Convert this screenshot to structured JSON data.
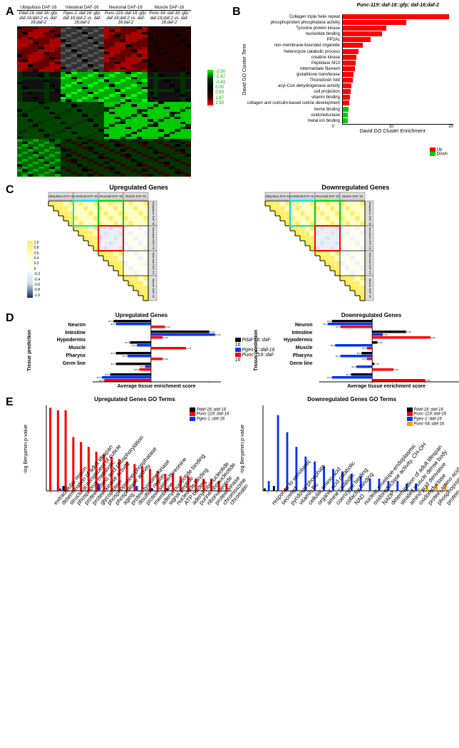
{
  "panelA": {
    "col_groups": [
      "Ubiquitous DAF-16",
      "Intestinal DAF-16",
      "Neuronal DAF-16",
      "Muscle DAF-16"
    ],
    "col_sub": [
      "Pdaf-16::daf-16::gfp; daf-16;daf-2 vs. daf-16;daf-2",
      "Pges-1::daf-16::gfp; daf-16;daf-2 vs. daf-16;daf-2",
      "Punc-119::daf-16::gfp; daf-16;daf-2 vs. daf-16;daf-2",
      "Punc-54::daf-16::gfp; daf-16;daf-2 vs. daf-16;daf-2"
    ],
    "legend_vals": [
      "-2.50",
      "-1.67",
      "-0.83",
      "0.00",
      "0.83",
      "1.67",
      "2.50"
    ],
    "colors": [
      "#00ff00",
      "#008800",
      "#003300",
      "#000000",
      "#330000",
      "#880000",
      "#ff0000",
      "#111111",
      "#222222",
      "#556655"
    ]
  },
  "panelB": {
    "title": "Punc-119::daf-16::gfp; daf-16;daf-2",
    "y_label": "David GO Cluster Term",
    "x_label": "David GO Cluster Enrichment",
    "x_ticks": [
      0,
      10,
      20
    ],
    "x_max": 28,
    "terms": [
      {
        "label": "Collagen triple helix repeat",
        "val": 27,
        "color": "#ff0000"
      },
      {
        "label": "phosphoprotein phosphatase activity",
        "val": 16,
        "color": "#ff0000"
      },
      {
        "label": "Tyrosine protein kinase",
        "val": 11,
        "color": "#ff0000"
      },
      {
        "label": "nucleotide binding",
        "val": 10,
        "color": "#ff0000"
      },
      {
        "label": "PP2Ac",
        "val": 7,
        "color": "#ff0000"
      },
      {
        "label": "non-membrane-bounded organelle",
        "val": 5,
        "color": "#ff0000"
      },
      {
        "label": "heterocycle catabolic process",
        "val": 4,
        "color": "#ff0000"
      },
      {
        "label": "creatine kinase",
        "val": 3.5,
        "color": "#ff0000"
      },
      {
        "label": "Peptidase M13",
        "val": 3.2,
        "color": "#ff0000"
      },
      {
        "label": "Intermediate filament",
        "val": 3,
        "color": "#ff0000"
      },
      {
        "label": "glutathione transferase",
        "val": 2.8,
        "color": "#ff0000"
      },
      {
        "label": "Thioredoxin fold",
        "val": 2.5,
        "color": "#ff0000"
      },
      {
        "label": "acyl-CoA dehydrogenase activity",
        "val": 2.2,
        "color": "#ff0000"
      },
      {
        "label": "cell projection",
        "val": 2,
        "color": "#ff0000"
      },
      {
        "label": "vitamin binding",
        "val": 1.8,
        "color": "#ff0000"
      },
      {
        "label": "collagen and cuticulin-based cuticle development",
        "val": 1.6,
        "color": "#ff0000"
      },
      {
        "label": "heme binding",
        "val": 1.5,
        "color": "#00cc00"
      },
      {
        "label": "oxidoreductase",
        "val": 1.3,
        "color": "#00cc00"
      },
      {
        "label": "metal ion binding",
        "val": 1.2,
        "color": "#00cc00"
      }
    ],
    "legend": [
      {
        "label": "Up",
        "color": "#ff0000"
      },
      {
        "label": "Down",
        "color": "#00cc00"
      }
    ]
  },
  "panelC": {
    "titles": [
      "Upregulated Genes",
      "Downregulated Genes"
    ],
    "groups": [
      "Ubiquitous DAF-16",
      "Intestinal DAF-16",
      "Neuronal DAF-16",
      "Muscle DAF-16"
    ],
    "legend_vals": [
      "1.0",
      "0.8",
      "0.6",
      "0.4",
      "0.2",
      "0",
      "-0.2",
      "-0.4",
      "-0.6",
      "-0.8",
      "-1.0"
    ],
    "box_colors": {
      "cyan": "#00dddd",
      "green": "#00cc00",
      "red": "#ff0000"
    },
    "cell_colors": {
      "high": "#ffee44",
      "mid": "#ffffdd",
      "low": "#ffffff",
      "neg": "#bbccdd"
    }
  },
  "panelD": {
    "titles": [
      "Upregulated Genes",
      "Downregulated Genes"
    ],
    "y_label": "Tissue prediction",
    "x_label": "Average tissue enrichment score",
    "tissues": [
      "Neuron",
      "Intestine",
      "Hypodermis",
      "Muscle",
      "Pharynx",
      "Germ line"
    ],
    "x_range": [
      -0.5,
      0.5
    ],
    "x_ticks": [
      -0.5,
      0,
      0.5
    ],
    "series": [
      {
        "label": "Pdaf-16::daf-16",
        "color": "#000000"
      },
      {
        "label": "Pges-1::daf-16",
        "color": "#0033ff"
      },
      {
        "label": "Punc-119::daf-16",
        "color": "#ff0000"
      }
    ],
    "up_data": {
      "Neuron": [
        -0.32,
        -0.3,
        0.12
      ],
      "Intestine": [
        0.5,
        0.55,
        0.1
      ],
      "Hypodermis": [
        -0.18,
        -0.12,
        0.3
      ],
      "Muscle": [
        -0.3,
        -0.2,
        0.1
      ],
      "Pharynx": [
        -0.3,
        -0.05,
        -0.1
      ],
      "Germ line": [
        -0.35,
        -0.42,
        -0.4
      ]
    },
    "down_data": {
      "Neuron": [
        -0.38,
        -0.42,
        -0.3
      ],
      "Intestine": [
        0.32,
        0.1,
        0.55
      ],
      "Hypodermis": [
        0.05,
        -0.35,
        -0.05
      ],
      "Muscle": [
        -0.1,
        -0.3,
        -0.05
      ],
      "Pharynx": [
        0.02,
        -0.15,
        0.2
      ],
      "Germ line": [
        -0.2,
        -0.38,
        0.5
      ]
    },
    "down_extra_x": [
      1.0
    ]
  },
  "panelE": {
    "titles": [
      "Upregulated Genes GO Terms",
      "Downregulated Genes GO Terms"
    ],
    "y_label": "-log Benjamini p-value",
    "up_series": [
      {
        "label": "Pdaf-16::daf-16",
        "color": "#000000"
      },
      {
        "label": "Punc-119::daf-16",
        "color": "#ff0000"
      },
      {
        "label": "Pges-1::daf-16",
        "color": "#0033ff"
      }
    ],
    "down_series": [
      {
        "label": "Pdaf-16::daf-16",
        "color": "#000000"
      },
      {
        "label": "Punc-119::daf-16",
        "color": "#ff0000"
      },
      {
        "label": "Pges-1::daf-16",
        "color": "#0033ff"
      },
      {
        "label": "Punc-54::daf-16",
        "color": "#ff9900"
      }
    ],
    "up_x": [
      "extracellular region",
      "determination of adult lifespan",
      "structural constituent of cuticle",
      "phosphorus metabolic",
      "protein amino acid phosphorylation",
      "protein kinase activity",
      "glycoprotein",
      "phosphoprotein phosphatase",
      "phosphatase activity",
      "aging",
      "protein tyrosine kinase",
      "disulfide region",
      "protein serine/threonine",
      "membrane",
      "adenyl nucleotide binding",
      "signal peptide",
      "nucleotide binding",
      "ATP binding",
      "adenyl ribonucleotide",
      "purine ribonucleotide",
      "ribonucleotide",
      "protein kinase",
      "chromosome",
      "chromatin"
    ],
    "up_vals": {
      "black": [
        0,
        0,
        2,
        0,
        0,
        0,
        0,
        0,
        0,
        0,
        0,
        0,
        0,
        0,
        0,
        0,
        0,
        0,
        0,
        0,
        0,
        0,
        0,
        0
      ],
      "red": [
        34,
        33,
        33,
        22,
        20,
        18,
        16,
        15,
        14,
        13,
        12,
        11,
        10,
        9,
        8,
        7,
        7,
        6,
        6,
        5,
        5,
        5,
        4,
        3
      ],
      "blue": [
        0,
        1,
        0,
        0,
        0,
        0,
        3,
        0,
        0,
        0,
        0,
        2,
        0,
        1,
        0,
        1,
        0,
        0,
        0,
        0,
        0,
        0,
        0,
        0
      ]
    },
    "up_ymax": 35,
    "down_x": [
      "response to xenobiotic",
      "secreted",
      "pyridoxal phosphate",
      "vitamin B6",
      "cellular amino acid",
      "organic acid catabolic",
      "amine catabolic",
      "coenzyme binding",
      "cofactor binding",
      "NAD",
      "nuclear envelope-endoplasmic",
      "oxidoreductase activity, CH-OH",
      "NADP",
      "determination of adult lifespan",
      "striated muscle dense body",
      "amino acid derivative",
      "oxidoreductase",
      "protein amino acid phosphorylation",
      "phosphoprotein",
      "protein tyrosine phosphatase activity"
    ],
    "down_vals": {
      "black": [
        1,
        2,
        0,
        0,
        0,
        0,
        0,
        0,
        0,
        0,
        0,
        0,
        0,
        0,
        0,
        0,
        0,
        0,
        0,
        0
      ],
      "red": [
        0,
        0,
        1,
        0,
        0,
        0,
        0,
        0,
        0,
        0,
        0,
        0,
        0,
        0,
        0,
        0,
        0,
        0,
        0,
        0
      ],
      "blue": [
        4,
        31,
        24,
        18,
        14,
        12,
        10,
        9,
        8,
        7,
        6,
        5,
        5,
        4,
        4,
        3,
        3,
        0,
        0,
        0
      ],
      "orange": [
        0,
        0,
        0,
        0,
        0,
        0,
        0,
        0,
        0,
        0,
        0,
        0,
        0,
        0,
        0,
        0,
        1,
        2,
        3,
        3
      ]
    },
    "down_ymax": 35
  }
}
